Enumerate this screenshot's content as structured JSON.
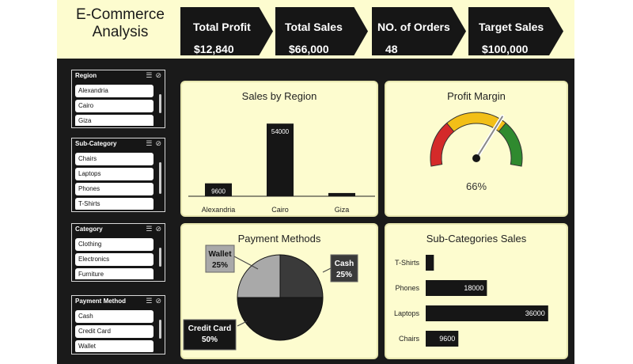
{
  "header": {
    "title_line1": "E-Commerce",
    "title_line2": "Analysis"
  },
  "kpis": [
    {
      "label": "Total Profit",
      "value": "$12,840"
    },
    {
      "label": "Total Sales",
      "value": "$66,000"
    },
    {
      "label": "NO. of Orders",
      "value": "48"
    },
    {
      "label": "Target Sales",
      "value": "$100,000"
    }
  ],
  "slicers": [
    {
      "title": "Region",
      "items": [
        "Alexandria",
        "Cairo",
        "Giza"
      ]
    },
    {
      "title": "Sub-Category",
      "items": [
        "Chairs",
        "Laptops",
        "Phones",
        "T-Shirts"
      ]
    },
    {
      "title": "Category",
      "items": [
        "Clothing",
        "Electronics",
        "Furniture"
      ]
    },
    {
      "title": "Payment Method",
      "items": [
        "Cash",
        "Credit Card",
        "Wallet"
      ]
    }
  ],
  "icons": {
    "multiselect": "multi-select-icon",
    "clearfilter": "clear-filter-icon"
  },
  "colors": {
    "panel_bg": "#fdfccf",
    "dark": "#161616",
    "gauge_red": "#d42a2a",
    "gauge_yellow": "#f2bf17",
    "gauge_green": "#2f8a2f"
  },
  "chart_data": [
    {
      "type": "bar",
      "title": "Sales by Region",
      "categories": [
        "Alexandria",
        "Cairo",
        "Giza"
      ],
      "values": [
        9600,
        54000,
        2400
      ],
      "labels": [
        "9600",
        "54000",
        ""
      ],
      "ylim": [
        0,
        60000
      ]
    },
    {
      "type": "gauge",
      "title": "Profit Margin",
      "value": 66,
      "value_label": "66%"
    },
    {
      "type": "pie",
      "title": "Payment Methods",
      "slices": [
        {
          "name": "Cash",
          "value": 25,
          "label": "25%",
          "color": "#3a3a3a"
        },
        {
          "name": "Credit Card",
          "value": 50,
          "label": "50%",
          "color": "#1b1b1b"
        },
        {
          "name": "Wallet",
          "value": 25,
          "label": "25%",
          "color": "#a9a9a9"
        }
      ]
    },
    {
      "type": "bar",
      "orientation": "horizontal",
      "title": "Sub-Categories Sales",
      "categories": [
        "T-Shirts",
        "Phones",
        "Laptops",
        "Chairs"
      ],
      "values": [
        2400,
        18000,
        36000,
        9600
      ],
      "labels": [
        "",
        "18000",
        "36000",
        "9600"
      ],
      "xlim": [
        0,
        40000
      ]
    }
  ]
}
